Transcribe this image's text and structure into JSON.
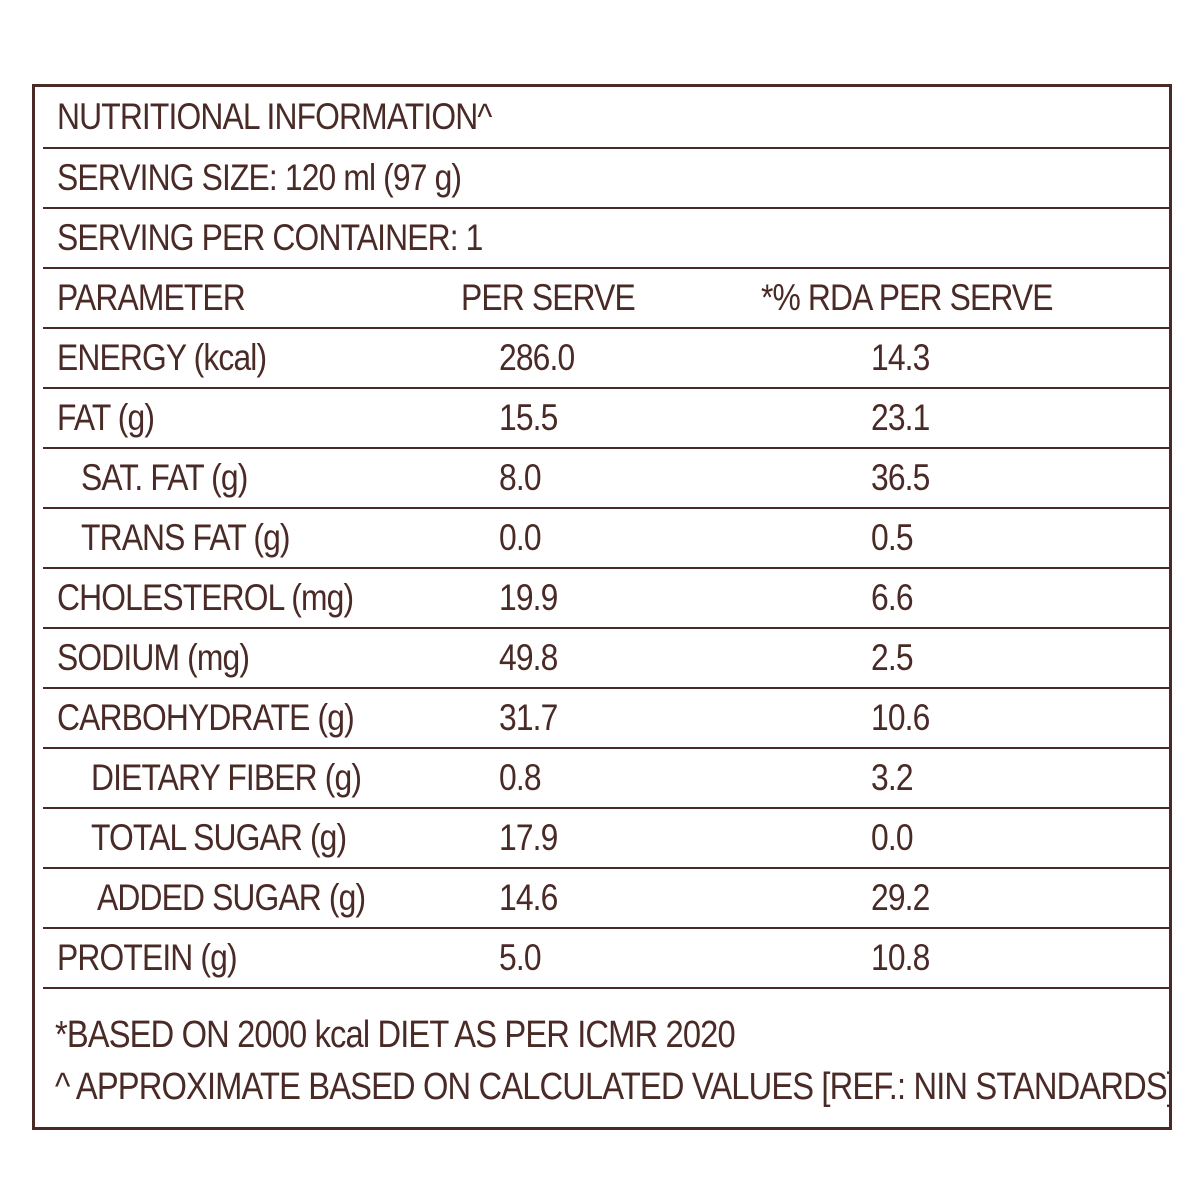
{
  "header": {
    "title": "NUTRITIONAL INFORMATION^",
    "serving_size": "SERVING SIZE: 120 ml (97 g)",
    "serving_per_container": "SERVING PER CONTAINER: 1"
  },
  "columns": {
    "parameter": "PARAMETER",
    "per_serve": "PER SERVE",
    "rda": "*% RDA PER SERVE"
  },
  "rows": [
    {
      "name": "ENERGY (kcal)",
      "per_serve": "286.0",
      "rda": "14.3"
    },
    {
      "name": "FAT (g)",
      "per_serve": "15.5",
      "rda": "23.1"
    },
    {
      "name": "SAT. FAT (g)",
      "per_serve": "8.0",
      "rda": "36.5"
    },
    {
      "name": "TRANS FAT (g)",
      "per_serve": "0.0",
      "rda": "0.5"
    },
    {
      "name": "CHOLESTEROL (mg)",
      "per_serve": "19.9",
      "rda": "6.6"
    },
    {
      "name": "SODIUM (mg)",
      "per_serve": "49.8",
      "rda": "2.5"
    },
    {
      "name": "CARBOHYDRATE (g)",
      "per_serve": "31.7",
      "rda": "10.6"
    },
    {
      "name": "DIETARY FIBER (g)",
      "per_serve": "0.8",
      "rda": "3.2"
    },
    {
      "name": "TOTAL SUGAR (g)",
      "per_serve": "17.9",
      "rda": "0.0"
    },
    {
      "name": "ADDED SUGAR (g)",
      "per_serve": "14.6",
      "rda": "29.2"
    },
    {
      "name": "PROTEIN (g)",
      "per_serve": "5.0",
      "rda": "10.8"
    }
  ],
  "footer": {
    "note1": "*BASED ON 2000 kcal DIET AS PER ICMR 2020",
    "note2": "^ APPROXIMATE BASED ON CALCULATED VALUES [REF.: NIN STANDARDS]"
  },
  "colors": {
    "text": "#4a2a26",
    "background": "#ffffff"
  }
}
